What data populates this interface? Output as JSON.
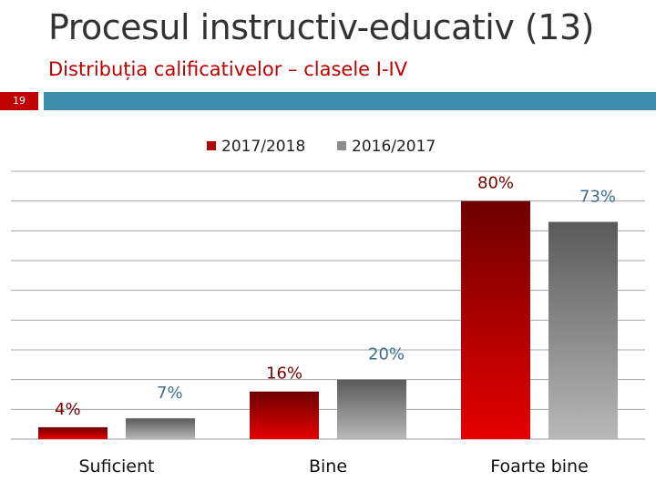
{
  "slide": {
    "title": "Procesul instructiv-educativ (13)",
    "subtitle": "Distribuția calificativelor – clasele I-IV",
    "number": "19"
  },
  "colors": {
    "accent_red": "#c00000",
    "accent_blue": "#3c8dab",
    "series_2017_2018": "#b30000",
    "series_2016_2017": "#8c8c8c",
    "label_2017_2018": "#7a0000",
    "label_2016_2017": "#3f6f8f"
  },
  "chart_data": {
    "type": "bar",
    "title": "",
    "xlabel": "",
    "ylabel": "",
    "categories": [
      "Suficient",
      "Bine",
      "Foarte bine"
    ],
    "series": [
      {
        "name": "2017/2018",
        "values": [
          4,
          16,
          80
        ],
        "labels": [
          "4%",
          "16%",
          "80%"
        ]
      },
      {
        "name": "2016/2017",
        "values": [
          7,
          20,
          73
        ],
        "labels": [
          "7%",
          "20%",
          "73%"
        ]
      }
    ],
    "ylim": [
      0,
      90
    ],
    "grid": true,
    "legend": "top-center"
  }
}
